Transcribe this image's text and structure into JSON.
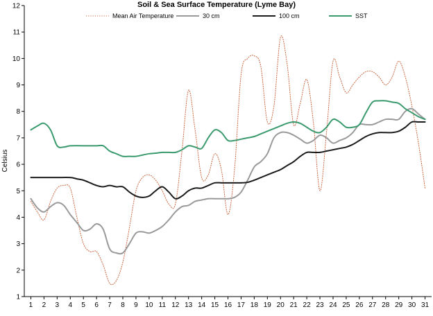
{
  "chart_data": {
    "type": "line",
    "title": "Soil & Sea Surface Temperature (Lyme Bay)",
    "xlabel": "",
    "ylabel": "Celsius",
    "xlim": [
      1,
      31
    ],
    "ylim": [
      1,
      12
    ],
    "x_ticks": [
      1,
      2,
      3,
      4,
      5,
      6,
      7,
      8,
      9,
      10,
      11,
      12,
      13,
      14,
      15,
      16,
      17,
      18,
      19,
      20,
      21,
      22,
      23,
      24,
      25,
      26,
      27,
      28,
      29,
      30,
      31
    ],
    "y_ticks": [
      1,
      2,
      3,
      4,
      5,
      6,
      7,
      8,
      9,
      10,
      11,
      12
    ],
    "grid": false,
    "legend_position": "top",
    "series": [
      {
        "name": "Mean Air Temperature",
        "color": "#c8643c",
        "style": "dotted",
        "points": [
          [
            1,
            4.6
          ],
          [
            1.5,
            4.2
          ],
          [
            2,
            3.9
          ],
          [
            2.5,
            4.6
          ],
          [
            3,
            5.1
          ],
          [
            3.5,
            5.2
          ],
          [
            4,
            5.1
          ],
          [
            4.5,
            4.0
          ],
          [
            5,
            3.0
          ],
          [
            5.5,
            2.7
          ],
          [
            6,
            2.7
          ],
          [
            6.5,
            2.2
          ],
          [
            7,
            1.5
          ],
          [
            7.5,
            1.6
          ],
          [
            8,
            2.3
          ],
          [
            8.5,
            3.6
          ],
          [
            9,
            5.0
          ],
          [
            9.5,
            5.5
          ],
          [
            10,
            5.6
          ],
          [
            10.5,
            5.4
          ],
          [
            11,
            5.0
          ],
          [
            11.5,
            4.5
          ],
          [
            12,
            4.5
          ],
          [
            12.5,
            6.5
          ],
          [
            13,
            8.8
          ],
          [
            13.5,
            7.3
          ],
          [
            14,
            5.5
          ],
          [
            14.5,
            5.6
          ],
          [
            15,
            6.4
          ],
          [
            15.5,
            5.8
          ],
          [
            16,
            4.1
          ],
          [
            16.5,
            5.8
          ],
          [
            17,
            9.4
          ],
          [
            17.5,
            10.0
          ],
          [
            18,
            10.1
          ],
          [
            18.5,
            9.7
          ],
          [
            19,
            7.6
          ],
          [
            19.5,
            8.2
          ],
          [
            20,
            10.8
          ],
          [
            20.5,
            9.8
          ],
          [
            21,
            7.5
          ],
          [
            21.5,
            8.3
          ],
          [
            22,
            9.2
          ],
          [
            22.5,
            7.6
          ],
          [
            23,
            5.0
          ],
          [
            23.5,
            7.2
          ],
          [
            24,
            9.9
          ],
          [
            24.5,
            9.3
          ],
          [
            25,
            8.7
          ],
          [
            25.5,
            9.0
          ],
          [
            26,
            9.3
          ],
          [
            26.5,
            9.5
          ],
          [
            27,
            9.5
          ],
          [
            27.5,
            9.3
          ],
          [
            28,
            9.0
          ],
          [
            28.5,
            9.3
          ],
          [
            29,
            9.9
          ],
          [
            29.5,
            9.3
          ],
          [
            30,
            8.2
          ],
          [
            30.5,
            6.8
          ],
          [
            31,
            5.1
          ]
        ]
      },
      {
        "name": "30 cm",
        "color": "#999999",
        "style": "solid",
        "points": [
          [
            1,
            4.7
          ],
          [
            1.5,
            4.35
          ],
          [
            2,
            4.2
          ],
          [
            2.5,
            4.4
          ],
          [
            3,
            4.55
          ],
          [
            3.5,
            4.45
          ],
          [
            4,
            4.1
          ],
          [
            4.5,
            3.8
          ],
          [
            5,
            3.5
          ],
          [
            5.5,
            3.55
          ],
          [
            6,
            3.75
          ],
          [
            6.5,
            3.55
          ],
          [
            7,
            2.8
          ],
          [
            7.5,
            2.65
          ],
          [
            8,
            2.65
          ],
          [
            8.5,
            3.0
          ],
          [
            9,
            3.4
          ],
          [
            9.5,
            3.45
          ],
          [
            10,
            3.4
          ],
          [
            10.5,
            3.5
          ],
          [
            11,
            3.65
          ],
          [
            11.5,
            3.9
          ],
          [
            12,
            4.2
          ],
          [
            12.5,
            4.4
          ],
          [
            13,
            4.45
          ],
          [
            13.5,
            4.6
          ],
          [
            14,
            4.65
          ],
          [
            14.5,
            4.7
          ],
          [
            15,
            4.7
          ],
          [
            15.5,
            4.7
          ],
          [
            16,
            4.7
          ],
          [
            16.5,
            4.75
          ],
          [
            17,
            4.95
          ],
          [
            17.5,
            5.4
          ],
          [
            18,
            5.9
          ],
          [
            18.5,
            6.1
          ],
          [
            19,
            6.4
          ],
          [
            19.5,
            7.0
          ],
          [
            20,
            7.2
          ],
          [
            20.5,
            7.2
          ],
          [
            21,
            7.1
          ],
          [
            21.5,
            6.95
          ],
          [
            22,
            6.8
          ],
          [
            22.5,
            6.9
          ],
          [
            23,
            7.1
          ],
          [
            23.5,
            7.0
          ],
          [
            24,
            6.8
          ],
          [
            24.5,
            6.9
          ],
          [
            25,
            7.0
          ],
          [
            25.5,
            7.2
          ],
          [
            26,
            7.5
          ],
          [
            26.5,
            7.5
          ],
          [
            27,
            7.5
          ],
          [
            27.5,
            7.6
          ],
          [
            28,
            7.7
          ],
          [
            28.5,
            7.7
          ],
          [
            29,
            7.7
          ],
          [
            29.5,
            8.0
          ],
          [
            30,
            8.1
          ],
          [
            30.5,
            7.9
          ],
          [
            31,
            7.7
          ]
        ]
      },
      {
        "name": "100 cm",
        "color": "#1a1a1a",
        "style": "solid",
        "points": [
          [
            1,
            5.5
          ],
          [
            2,
            5.5
          ],
          [
            3,
            5.5
          ],
          [
            4,
            5.5
          ],
          [
            4.5,
            5.45
          ],
          [
            5,
            5.4
          ],
          [
            5.5,
            5.3
          ],
          [
            6,
            5.2
          ],
          [
            6.5,
            5.15
          ],
          [
            7,
            5.2
          ],
          [
            7.5,
            5.15
          ],
          [
            8,
            5.15
          ],
          [
            8.5,
            4.95
          ],
          [
            9,
            4.8
          ],
          [
            9.5,
            4.75
          ],
          [
            10,
            4.8
          ],
          [
            10.5,
            5.0
          ],
          [
            11,
            5.15
          ],
          [
            11.5,
            4.95
          ],
          [
            12,
            4.7
          ],
          [
            12.5,
            4.8
          ],
          [
            13,
            5.0
          ],
          [
            13.5,
            5.1
          ],
          [
            14,
            5.1
          ],
          [
            14.5,
            5.2
          ],
          [
            15,
            5.3
          ],
          [
            15.5,
            5.3
          ],
          [
            16,
            5.3
          ],
          [
            16.5,
            5.3
          ],
          [
            17,
            5.3
          ],
          [
            17.5,
            5.32
          ],
          [
            18,
            5.4
          ],
          [
            18.5,
            5.5
          ],
          [
            19,
            5.6
          ],
          [
            19.5,
            5.7
          ],
          [
            20,
            5.8
          ],
          [
            20.5,
            5.95
          ],
          [
            21,
            6.1
          ],
          [
            21.5,
            6.3
          ],
          [
            22,
            6.45
          ],
          [
            22.5,
            6.45
          ],
          [
            23,
            6.45
          ],
          [
            23.5,
            6.5
          ],
          [
            24,
            6.55
          ],
          [
            24.5,
            6.6
          ],
          [
            25,
            6.65
          ],
          [
            25.5,
            6.75
          ],
          [
            26,
            6.9
          ],
          [
            26.5,
            7.05
          ],
          [
            27,
            7.15
          ],
          [
            27.5,
            7.2
          ],
          [
            28,
            7.2
          ],
          [
            28.5,
            7.2
          ],
          [
            29,
            7.25
          ],
          [
            29.5,
            7.4
          ],
          [
            30,
            7.6
          ],
          [
            30.5,
            7.6
          ],
          [
            31,
            7.6
          ]
        ]
      },
      {
        "name": "SST",
        "color": "#3a9a6e",
        "style": "solid",
        "points": [
          [
            1,
            7.3
          ],
          [
            1.5,
            7.45
          ],
          [
            2,
            7.55
          ],
          [
            2.5,
            7.3
          ],
          [
            3,
            6.7
          ],
          [
            3.5,
            6.65
          ],
          [
            4,
            6.7
          ],
          [
            5,
            6.7
          ],
          [
            6,
            6.7
          ],
          [
            6.5,
            6.7
          ],
          [
            7,
            6.5
          ],
          [
            7.5,
            6.4
          ],
          [
            8,
            6.3
          ],
          [
            8.5,
            6.3
          ],
          [
            9,
            6.3
          ],
          [
            9.5,
            6.35
          ],
          [
            10,
            6.4
          ],
          [
            10.5,
            6.42
          ],
          [
            11,
            6.45
          ],
          [
            11.5,
            6.45
          ],
          [
            12,
            6.45
          ],
          [
            12.5,
            6.55
          ],
          [
            13,
            6.7
          ],
          [
            13.5,
            6.65
          ],
          [
            14,
            6.6
          ],
          [
            14.5,
            7.0
          ],
          [
            15,
            7.3
          ],
          [
            15.5,
            7.2
          ],
          [
            16,
            6.9
          ],
          [
            16.5,
            6.9
          ],
          [
            17,
            6.95
          ],
          [
            17.5,
            7.0
          ],
          [
            18,
            7.05
          ],
          [
            18.5,
            7.15
          ],
          [
            19,
            7.25
          ],
          [
            19.5,
            7.35
          ],
          [
            20,
            7.45
          ],
          [
            20.5,
            7.55
          ],
          [
            21,
            7.6
          ],
          [
            21.5,
            7.55
          ],
          [
            22,
            7.4
          ],
          [
            22.5,
            7.25
          ],
          [
            23,
            7.2
          ],
          [
            23.5,
            7.4
          ],
          [
            24,
            7.7
          ],
          [
            24.5,
            7.6
          ],
          [
            25,
            7.4
          ],
          [
            25.5,
            7.4
          ],
          [
            26,
            7.5
          ],
          [
            26.5,
            7.95
          ],
          [
            27,
            8.35
          ],
          [
            27.5,
            8.4
          ],
          [
            28,
            8.4
          ],
          [
            28.5,
            8.35
          ],
          [
            29,
            8.3
          ],
          [
            29.5,
            8.1
          ],
          [
            30,
            7.95
          ],
          [
            30.5,
            7.8
          ],
          [
            31,
            7.7
          ]
        ]
      }
    ]
  }
}
